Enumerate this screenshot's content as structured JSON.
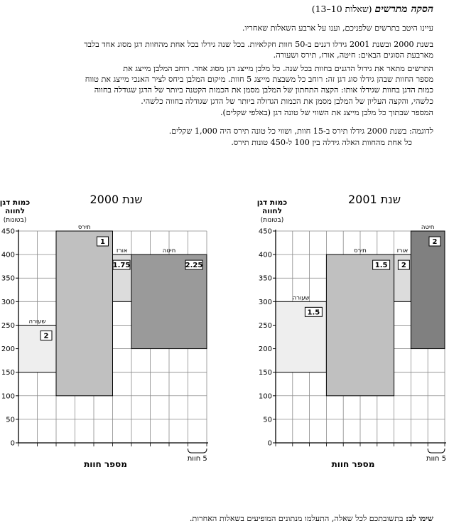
{
  "section": {
    "title": "הסקה מתרשים",
    "subtitle": "(שאלות 10–13)"
  },
  "instructions": {
    "lines": [
      "עיינו היטב בתרשים שלפניכם, וענו על ארבע השאלות שאחריו.",
      "בשנת 2000 ובשנת 2001 גידלו דגנים ב-50 חוות חקלאיות.  בכל שנה גידלו בכל אחת מהחוות דגן מסוג אחד בלבד",
      "מארבעת הסוגים הבאים: חיטה, אורז, תירס ושעורה.",
      "התרשים מתאר את גידול הדגנים בחוות בכל שנה.  כל מלבן מייצג דגן מסוג אחד.  רוחב המלבן מייצג את",
      "מספר החוות שבהן גידלו סוג דגן זה: רוחב כל משבצת מייצג 5 חוות.  מיקום המלבן ביחס לציר האנכי מייצג את טווח",
      "כמות הדגן בחוות שגידלו אותו: הקצה התחתון של המלבן מסמן את הכמות הקטנה ביותר של הדגן שגודלה בחווה",
      "כלשהי, והקצה העליון של המלבן מסמן את הכמות הגדולה ביותר של הדגן שגודלה בחווה כלשהי.",
      "המספר שבתוך כל מלבן מייצג את השווי של טונה דגן (באלפי שקלים)."
    ],
    "example_lines": [
      "לדוגמה: בשנת 2000 גידלו תירס ב-15 חוות, ושווי כל טונה תירס היה 1,000 שקלים.",
      "כל אחת מהחוות האלה גידלה בין 100 ל-450 טונות תירס."
    ]
  },
  "footnote": {
    "bold": "שימו לב:",
    "text": " בתשובתכם לכל שאלה, התעלמו מנתונים המופיעים בשאלות האחרות."
  },
  "chart_data": [
    {
      "type": "bar",
      "title": "שנת 2000",
      "ylabel": "כמות דגן לחווה (בטונות)",
      "xlabel": "מספר חוות",
      "scale_label": "5 חוות",
      "ylim": [
        0,
        450
      ],
      "yticks": [
        0,
        50,
        100,
        150,
        200,
        250,
        300,
        350,
        400,
        450
      ],
      "xlim": [
        0,
        50
      ],
      "grid": true,
      "bars": [
        {
          "name": "שעורה",
          "farms": 10,
          "min": 150,
          "max": 250,
          "value": "2",
          "color": "#eeeeee"
        },
        {
          "name": "תירס",
          "farms": 15,
          "min": 100,
          "max": 450,
          "value": "1",
          "color": "#c0c0c0"
        },
        {
          "name": "אורז",
          "farms": 5,
          "min": 300,
          "max": 400,
          "value": "1.75",
          "color": "#dcdcdc"
        },
        {
          "name": "חיטה",
          "farms": 20,
          "min": 200,
          "max": 400,
          "value": "2.25",
          "color": "#9a9a9a"
        }
      ]
    },
    {
      "type": "bar",
      "title": "שנת 2001",
      "ylabel": "כמות דגן לחווה (בטונות)",
      "xlabel": "מספר חוות",
      "scale_label": "5 חוות",
      "ylim": [
        0,
        450
      ],
      "yticks": [
        0,
        50,
        100,
        150,
        200,
        250,
        300,
        350,
        400,
        450
      ],
      "xlim": [
        0,
        50
      ],
      "grid": true,
      "bars": [
        {
          "name": "שעורה",
          "farms": 15,
          "min": 150,
          "max": 300,
          "value": "1.5",
          "color": "#eeeeee"
        },
        {
          "name": "תירס",
          "farms": 20,
          "min": 100,
          "max": 400,
          "value": "1.5",
          "color": "#c0c0c0"
        },
        {
          "name": "אורז",
          "farms": 5,
          "min": 300,
          "max": 400,
          "value": "2",
          "color": "#dcdcdc"
        },
        {
          "name": "חיטה",
          "farms": 10,
          "min": 200,
          "max": 450,
          "value": "2",
          "color": "#808080"
        }
      ]
    }
  ]
}
